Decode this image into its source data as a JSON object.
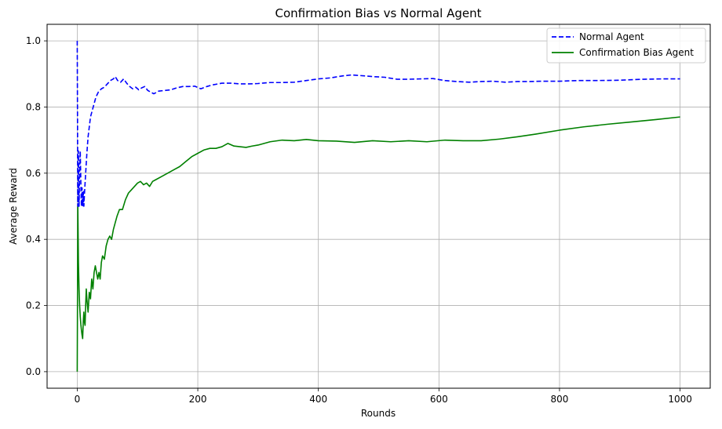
{
  "chart_data": {
    "type": "line",
    "title": "Confirmation Bias vs Normal Agent",
    "xlabel": "Rounds",
    "ylabel": "Average Reward",
    "xlim": [
      -50,
      1050
    ],
    "ylim": [
      -0.05,
      1.05
    ],
    "xticks": [
      0,
      200,
      400,
      600,
      800,
      1000
    ],
    "yticks": [
      0.0,
      0.2,
      0.4,
      0.6,
      0.8,
      1.0
    ],
    "xtick_labels": [
      "0",
      "200",
      "400",
      "600",
      "800",
      "1000"
    ],
    "ytick_labels": [
      "0.0",
      "0.2",
      "0.4",
      "0.6",
      "0.8",
      "1.0"
    ],
    "grid": true,
    "legend_position": "top-right",
    "series": [
      {
        "name": "Normal Agent",
        "color": "#0000ff",
        "dash": "dashed",
        "x": [
          0,
          1,
          2,
          3,
          4,
          5,
          6,
          7,
          8,
          9,
          10,
          11,
          12,
          14,
          16,
          18,
          20,
          22,
          25,
          28,
          31,
          35,
          40,
          45,
          50,
          55,
          60,
          63,
          67,
          72,
          77,
          82,
          87,
          92,
          97,
          102,
          107,
          112,
          117,
          122,
          127,
          135,
          145,
          155,
          165,
          175,
          185,
          195,
          205,
          215,
          225,
          240,
          255,
          270,
          285,
          300,
          320,
          340,
          360,
          380,
          400,
          420,
          440,
          455,
          470,
          490,
          510,
          530,
          550,
          570,
          590,
          610,
          630,
          650,
          670,
          690,
          710,
          730,
          750,
          770,
          800,
          830,
          860,
          900,
          940,
          970,
          1000
        ],
        "y": [
          1.0,
          0.5,
          0.667,
          0.5,
          0.6,
          0.667,
          0.571,
          0.5,
          0.556,
          0.5,
          0.545,
          0.5,
          0.538,
          0.6,
          0.66,
          0.71,
          0.74,
          0.77,
          0.79,
          0.81,
          0.83,
          0.845,
          0.855,
          0.86,
          0.87,
          0.88,
          0.885,
          0.892,
          0.88,
          0.875,
          0.885,
          0.872,
          0.862,
          0.855,
          0.86,
          0.852,
          0.858,
          0.862,
          0.85,
          0.845,
          0.84,
          0.848,
          0.85,
          0.852,
          0.858,
          0.862,
          0.862,
          0.863,
          0.855,
          0.862,
          0.867,
          0.872,
          0.872,
          0.87,
          0.87,
          0.871,
          0.874,
          0.874,
          0.875,
          0.88,
          0.885,
          0.888,
          0.894,
          0.897,
          0.895,
          0.892,
          0.89,
          0.884,
          0.884,
          0.885,
          0.886,
          0.88,
          0.877,
          0.875,
          0.877,
          0.878,
          0.875,
          0.877,
          0.877,
          0.878,
          0.878,
          0.88,
          0.88,
          0.881,
          0.884,
          0.885,
          0.885
        ]
      },
      {
        "name": "Confirmation Bias Agent",
        "color": "#008000",
        "dash": "solid",
        "x": [
          0,
          1,
          2,
          3,
          4,
          5,
          6,
          7,
          8,
          9,
          10,
          11,
          12,
          13,
          14,
          15,
          16,
          17,
          18,
          20,
          22,
          24,
          26,
          28,
          30,
          32,
          34,
          36,
          38,
          40,
          42,
          45,
          48,
          51,
          54,
          57,
          60,
          63,
          66,
          70,
          75,
          80,
          85,
          90,
          95,
          100,
          105,
          110,
          115,
          120,
          125,
          130,
          140,
          150,
          160,
          170,
          180,
          190,
          200,
          210,
          220,
          230,
          240,
          250,
          260,
          270,
          280,
          290,
          300,
          310,
          320,
          340,
          360,
          380,
          400,
          430,
          460,
          490,
          520,
          550,
          580,
          610,
          640,
          670,
          700,
          730,
          760,
          800,
          840,
          880,
          920,
          960,
          1000
        ],
        "y": [
          0.0,
          0.5,
          0.33,
          0.25,
          0.2,
          0.167,
          0.143,
          0.125,
          0.111,
          0.1,
          0.15,
          0.18,
          0.15,
          0.14,
          0.2,
          0.25,
          0.22,
          0.2,
          0.18,
          0.24,
          0.22,
          0.28,
          0.25,
          0.3,
          0.32,
          0.3,
          0.28,
          0.3,
          0.28,
          0.33,
          0.35,
          0.34,
          0.38,
          0.4,
          0.41,
          0.4,
          0.43,
          0.45,
          0.47,
          0.49,
          0.49,
          0.52,
          0.54,
          0.55,
          0.56,
          0.57,
          0.575,
          0.565,
          0.57,
          0.56,
          0.575,
          0.58,
          0.59,
          0.6,
          0.61,
          0.62,
          0.635,
          0.65,
          0.66,
          0.67,
          0.675,
          0.675,
          0.68,
          0.69,
          0.682,
          0.68,
          0.678,
          0.682,
          0.685,
          0.69,
          0.695,
          0.7,
          0.698,
          0.702,
          0.698,
          0.697,
          0.693,
          0.698,
          0.695,
          0.698,
          0.695,
          0.7,
          0.698,
          0.698,
          0.703,
          0.71,
          0.718,
          0.73,
          0.74,
          0.748,
          0.755,
          0.762,
          0.77
        ]
      }
    ]
  }
}
